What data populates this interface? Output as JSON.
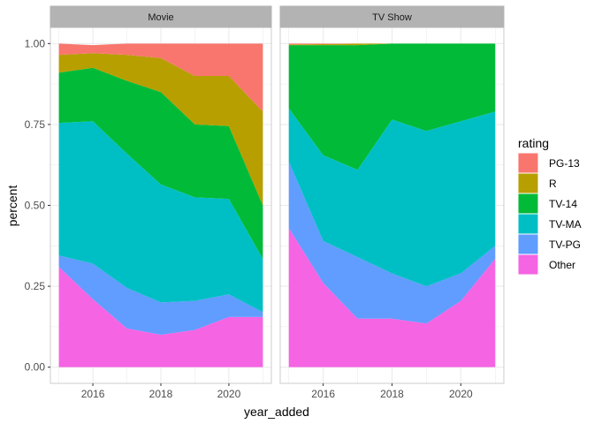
{
  "chart_data": {
    "type": "area",
    "stacked": true,
    "xlabel": "year_added",
    "ylabel": "percent",
    "xlim": [
      2014.75,
      2021.25
    ],
    "ylim": [
      -0.05,
      1.05
    ],
    "x_ticks": [
      2016,
      2018,
      2020
    ],
    "x_tick_labels": [
      "2016",
      "2018",
      "2020"
    ],
    "y_ticks": [
      0,
      0.25,
      0.5,
      0.75,
      1.0
    ],
    "y_tick_labels": [
      "0.00",
      "0.25",
      "0.50",
      "0.75",
      "1.00"
    ],
    "grid": true,
    "legend": {
      "title": "rating",
      "placement": "right",
      "entries": [
        {
          "label": "PG-13",
          "color": "#F8766D"
        },
        {
          "label": "R",
          "color": "#B79F00"
        },
        {
          "label": "TV-14",
          "color": "#00BA38"
        },
        {
          "label": "TV-MA",
          "color": "#00BFC4"
        },
        {
          "label": "TV-PG",
          "color": "#619CFF"
        },
        {
          "label": "Other",
          "color": "#F564E3"
        }
      ]
    },
    "stack_order_bottom_to_top": [
      "Other",
      "TV-PG",
      "TV-MA",
      "TV-14",
      "R",
      "PG-13"
    ],
    "panels": [
      {
        "name": "Movie",
        "x": [
          2015,
          2016,
          2017,
          2018,
          2019,
          2020,
          2021
        ],
        "series": [
          {
            "name": "Other",
            "values": [
              0.31,
              0.21,
              0.12,
              0.1,
              0.115,
              0.155,
              0.155
            ]
          },
          {
            "name": "TV-PG",
            "values": [
              0.035,
              0.11,
              0.125,
              0.1,
              0.09,
              0.07,
              0.015
            ]
          },
          {
            "name": "TV-MA",
            "values": [
              0.41,
              0.44,
              0.415,
              0.365,
              0.32,
              0.295,
              0.165
            ]
          },
          {
            "name": "TV-14",
            "values": [
              0.155,
              0.165,
              0.225,
              0.285,
              0.225,
              0.225,
              0.165
            ]
          },
          {
            "name": "R",
            "values": [
              0.055,
              0.045,
              0.08,
              0.105,
              0.15,
              0.155,
              0.29
            ]
          },
          {
            "name": "PG-13",
            "values": [
              0.035,
              0.025,
              0.035,
              0.045,
              0.1,
              0.1,
              0.21
            ]
          }
        ]
      },
      {
        "name": "TV Show",
        "x": [
          2015,
          2016,
          2017,
          2018,
          2019,
          2020,
          2021
        ],
        "series": [
          {
            "name": "Other",
            "values": [
              0.43,
              0.26,
              0.15,
              0.15,
              0.135,
              0.205,
              0.335
            ]
          },
          {
            "name": "TV-PG",
            "values": [
              0.205,
              0.13,
              0.19,
              0.14,
              0.115,
              0.085,
              0.04
            ]
          },
          {
            "name": "TV-MA",
            "values": [
              0.165,
              0.265,
              0.27,
              0.475,
              0.48,
              0.47,
              0.415
            ]
          },
          {
            "name": "TV-14",
            "values": [
              0.195,
              0.34,
              0.385,
              0.235,
              0.27,
              0.24,
              0.21
            ]
          },
          {
            "name": "R",
            "values": [
              0.002,
              0.003,
              0.005,
              0.0,
              0.0,
              0.0,
              0.0
            ]
          },
          {
            "name": "PG-13",
            "values": [
              0.003,
              0.002,
              0.0,
              0.0,
              0.0,
              0.0,
              0.0
            ]
          }
        ]
      }
    ]
  }
}
